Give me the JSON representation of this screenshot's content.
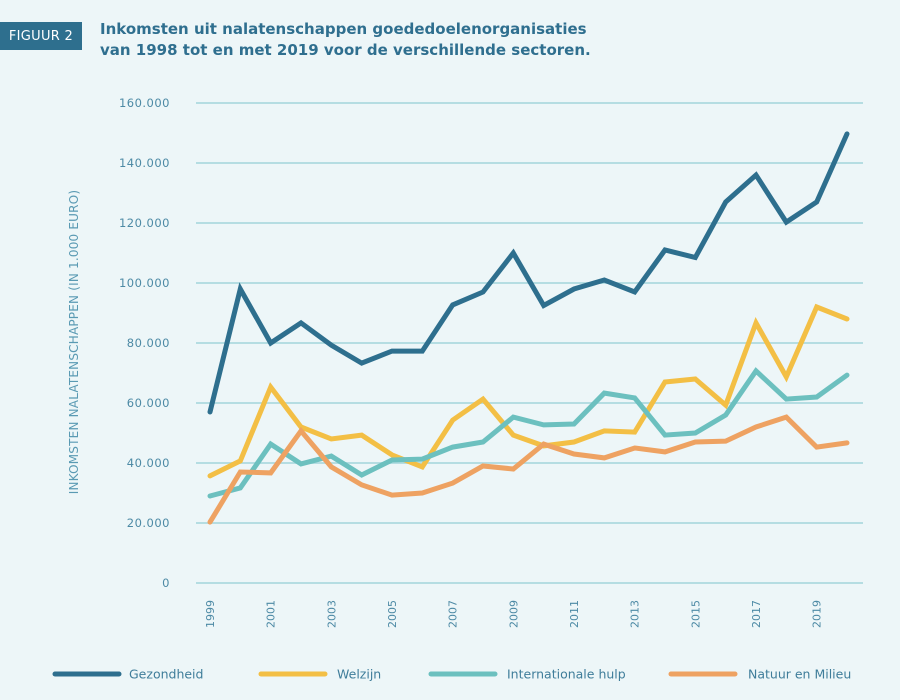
{
  "figure_label": "FIGUUR 2",
  "title": "Inkomsten uit nalatenschappen goededoelenorganisaties van 1998 tot en met 2019 voor de verschillende sectoren.",
  "chart_data": {
    "type": "line",
    "title": "Inkomsten uit nalatenschappen goededoelenorganisaties van 1998 tot en met 2019 voor de verschillende sectoren.",
    "xlabel": "",
    "ylabel": "INKOMSTEN NALATENSCHAPPEN (IN 1.000 EURO)",
    "x": [
      1998,
      1999,
      2000,
      2001,
      2002,
      2003,
      2004,
      2005,
      2006,
      2007,
      2008,
      2009,
      2010,
      2011,
      2012,
      2013,
      2014,
      2015,
      2016,
      2017,
      2018,
      2019
    ],
    "x_tick_labels": [
      "1999",
      "2001",
      "2003",
      "2005",
      "2007",
      "2009",
      "2011",
      "2013",
      "2015",
      "2017",
      "2019"
    ],
    "y_ticks": [
      0,
      20000,
      40000,
      60000,
      80000,
      100000,
      120000,
      140000,
      160000
    ],
    "y_tick_labels": [
      "0",
      "20.000",
      "40.000",
      "60.000",
      "80.000",
      "100.000",
      "120.000",
      "140.000",
      "160.000"
    ],
    "ylim": [
      0,
      160000
    ],
    "grid": "horizontal",
    "legend": "bottom",
    "series": [
      {
        "name": "Gezondheid",
        "color": "#2e6f8e",
        "values": [
          57000,
          98000,
          80000,
          86700,
          79300,
          73300,
          77300,
          77300,
          92700,
          97000,
          110000,
          92500,
          98000,
          101000,
          97000,
          111000,
          108500,
          127000,
          136000,
          120300,
          127000,
          149700
        ]
      },
      {
        "name": "Welzijn",
        "color": "#f3bf45",
        "values": [
          35700,
          40700,
          65300,
          52000,
          48000,
          49300,
          42700,
          38700,
          54300,
          61300,
          49300,
          45700,
          47000,
          50700,
          50300,
          67000,
          68000,
          59300,
          86700,
          68700,
          92000,
          88000
        ]
      },
      {
        "name": "Internationale hulp",
        "color": "#6cc0bf",
        "values": [
          29000,
          31700,
          46300,
          39700,
          42300,
          36000,
          41000,
          41300,
          45300,
          47000,
          55300,
          52700,
          53000,
          63300,
          61700,
          49300,
          50000,
          56000,
          70700,
          61300,
          62000,
          69300
        ]
      },
      {
        "name": "Natuur en Milieu",
        "color": "#eea262",
        "values": [
          20300,
          37000,
          36700,
          50700,
          38700,
          32700,
          29300,
          30000,
          33300,
          39000,
          38000,
          46300,
          43000,
          41700,
          45000,
          43700,
          47000,
          47300,
          52000,
          55300,
          45300,
          46700
        ]
      }
    ]
  }
}
